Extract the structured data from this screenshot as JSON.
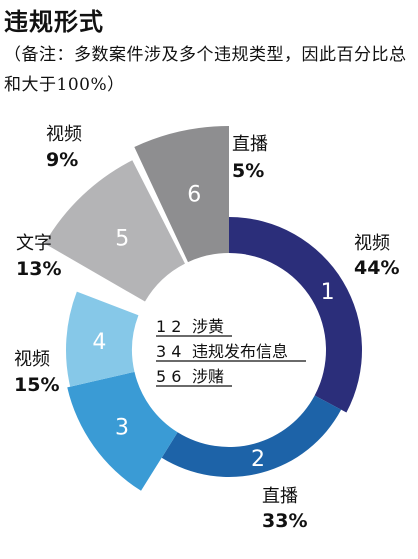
{
  "title": "违规形式",
  "note": "（备注：多数案件涉及多个违规类型，因此百分比总和大于100%）",
  "legend": [
    {
      "nums": "1 2",
      "label": "涉黄"
    },
    {
      "nums": "3 4",
      "label": "违规发布信息"
    },
    {
      "nums": "5 6",
      "label": "涉赌"
    }
  ],
  "chart_data": {
    "type": "pie",
    "title": "违规形式",
    "segments": [
      {
        "num": "1",
        "name": "视频",
        "value": 44,
        "pct": "44%",
        "color": "#2b2e7a"
      },
      {
        "num": "2",
        "name": "直播",
        "value": 33,
        "pct": "33%",
        "color": "#1d63a8"
      },
      {
        "num": "3",
        "name": "视频",
        "value": 15,
        "pct": "15%",
        "color": "#3a9bd5"
      },
      {
        "num": "4",
        "name": "文字",
        "value": 13,
        "pct": "13%",
        "color": "#86c8e8"
      },
      {
        "num": "5",
        "name": "视频",
        "value": 9,
        "pct": "9%",
        "color": "#b4b4b6"
      },
      {
        "num": "6",
        "name": "直播",
        "value": 5,
        "pct": "5%",
        "color": "#8e8e90"
      }
    ]
  }
}
